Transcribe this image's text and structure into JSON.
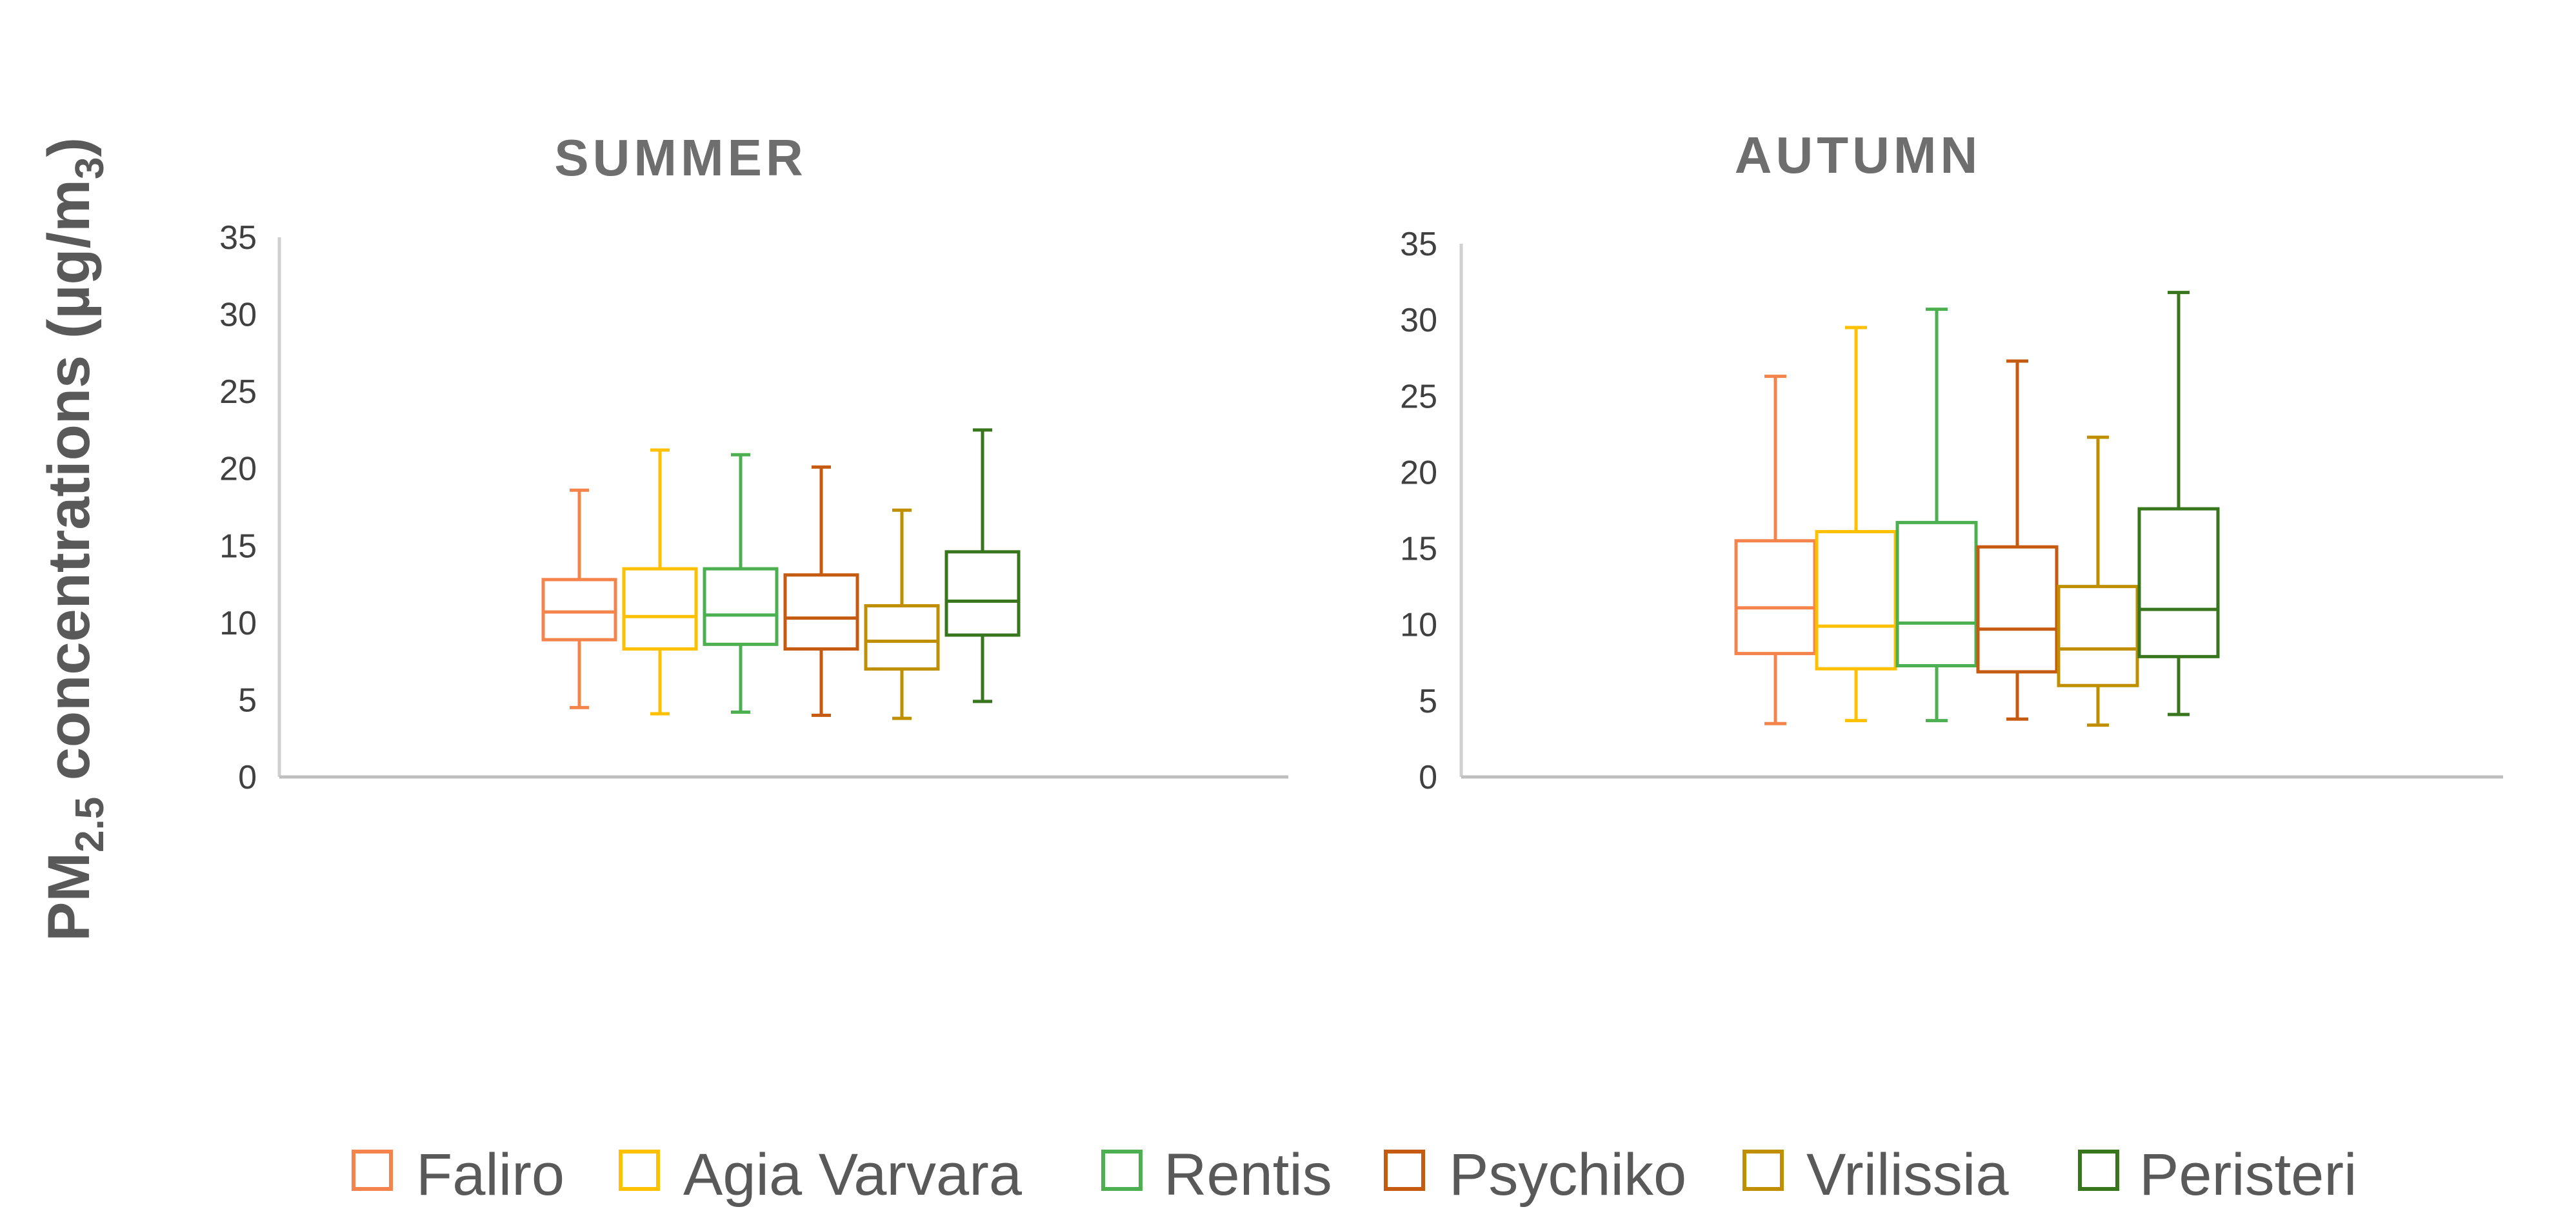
{
  "y_axis_title": {
    "prefix": "PM",
    "subscript": "2.5",
    "middle": " concentrations (µg/m",
    "unit_subscript": "3",
    "suffix": ")"
  },
  "chart_data": [
    {
      "type": "box",
      "title": "SUMMER",
      "ylim": [
        0,
        35
      ],
      "yticks": [
        "0",
        "5",
        "10",
        "15",
        "20",
        "25",
        "30",
        "35"
      ],
      "grid": false,
      "series": [
        {
          "name": "Faliro",
          "color": "#f4844c",
          "min": 4.5,
          "q1": 8.9,
          "median": 10.7,
          "q3": 12.8,
          "max": 18.6
        },
        {
          "name": "Agia Varvara",
          "color": "#ffc000",
          "min": 4.1,
          "q1": 8.3,
          "median": 10.4,
          "q3": 13.5,
          "max": 21.2
        },
        {
          "name": "Rentis",
          "color": "#4caf50",
          "min": 4.2,
          "q1": 8.6,
          "median": 10.5,
          "q3": 13.5,
          "max": 20.9
        },
        {
          "name": "Psychiko",
          "color": "#c55a11",
          "min": 4.0,
          "q1": 8.3,
          "median": 10.3,
          "q3": 13.1,
          "max": 20.1
        },
        {
          "name": "Vrilissia",
          "color": "#bf8f00",
          "min": 3.8,
          "q1": 7.0,
          "median": 8.8,
          "q3": 11.1,
          "max": 17.3
        },
        {
          "name": "Peristeri",
          "color": "#38761d",
          "min": 4.9,
          "q1": 9.2,
          "median": 11.4,
          "q3": 14.6,
          "max": 22.5
        }
      ]
    },
    {
      "type": "box",
      "title": "AUTUMN",
      "ylim": [
        0,
        35
      ],
      "yticks": [
        "0",
        "5",
        "10",
        "15",
        "20",
        "25",
        "30",
        "35"
      ],
      "grid": false,
      "series": [
        {
          "name": "Faliro",
          "color": "#f4844c",
          "min": 3.5,
          "q1": 8.1,
          "median": 11.1,
          "q3": 15.5,
          "max": 26.3
        },
        {
          "name": "Agia Varvara",
          "color": "#ffc000",
          "min": 3.7,
          "q1": 7.1,
          "median": 9.9,
          "q3": 16.1,
          "max": 29.5
        },
        {
          "name": "Rentis",
          "color": "#4caf50",
          "min": 3.7,
          "q1": 7.3,
          "median": 10.1,
          "q3": 16.7,
          "max": 30.7
        },
        {
          "name": "Psychiko",
          "color": "#c55a11",
          "min": 3.8,
          "q1": 6.9,
          "median": 9.7,
          "q3": 15.1,
          "max": 27.3
        },
        {
          "name": "Vrilissia",
          "color": "#bf8f00",
          "min": 3.4,
          "q1": 6.0,
          "median": 8.4,
          "q3": 12.5,
          "max": 22.3
        },
        {
          "name": "Peristeri",
          "color": "#38761d",
          "min": 4.1,
          "q1": 7.9,
          "median": 11.0,
          "q3": 17.6,
          "max": 31.8
        }
      ]
    }
  ],
  "legend": {
    "placement": "bottom",
    "items": [
      {
        "label": "Faliro",
        "color": "#f4844c"
      },
      {
        "label": "Agia Varvara",
        "color": "#ffc000"
      },
      {
        "label": "Rentis",
        "color": "#4caf50"
      },
      {
        "label": "Psychiko",
        "color": "#c55a11"
      },
      {
        "label": "Vrilissia",
        "color": "#bf8f00"
      },
      {
        "label": "Peristeri",
        "color": "#38761d"
      }
    ]
  }
}
